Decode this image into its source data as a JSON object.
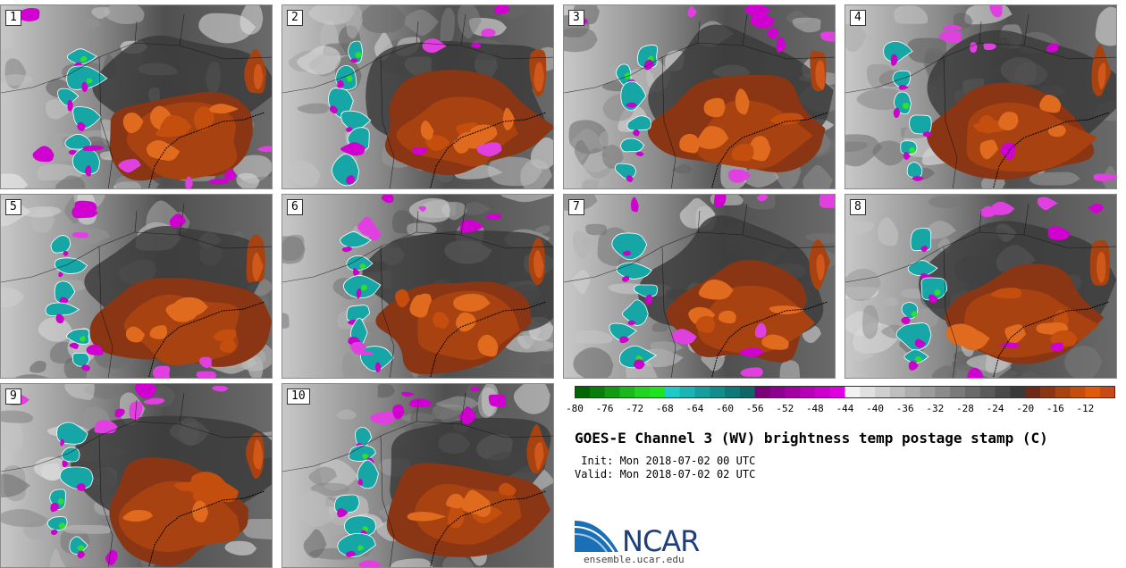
{
  "panels": [
    {
      "label": "1"
    },
    {
      "label": "2"
    },
    {
      "label": "3"
    },
    {
      "label": "4"
    },
    {
      "label": "5"
    },
    {
      "label": "6"
    },
    {
      "label": "7"
    },
    {
      "label": "8"
    },
    {
      "label": "9"
    },
    {
      "label": "10"
    }
  ],
  "colorbar": {
    "ticks": [
      "-80",
      "-76",
      "-72",
      "-68",
      "-64",
      "-60",
      "-56",
      "-52",
      "-48",
      "-44",
      "-40",
      "-36",
      "-32",
      "-28",
      "-24",
      "-20",
      "-16",
      "-12"
    ],
    "colors": [
      "#006400",
      "#0a7d0a",
      "#139a13",
      "#1ab81a",
      "#21d421",
      "#1fe31f",
      "#20c8c8",
      "#1ab4b4",
      "#169e9e",
      "#128c8c",
      "#107878",
      "#0e6666",
      "#7a007a",
      "#8e008e",
      "#a300a3",
      "#b800b8",
      "#cc00cc",
      "#e000e0",
      "#f2f2f2",
      "#e0e0e0",
      "#cfcfcf",
      "#bebebe",
      "#adadad",
      "#9c9c9c",
      "#8b8b8b",
      "#7a7a7a",
      "#6a6a6a",
      "#5a5a5a",
      "#4a4a4a",
      "#3a3a3a",
      "#6e2a18",
      "#8a3514",
      "#a84210",
      "#c44e0e",
      "#e05a0c",
      "#c84a16"
    ]
  },
  "title": "GOES-E Channel 3 (WV) brightness temp postage stamp (C)",
  "init": " Init: Mon 2018-07-02 00 UTC",
  "valid": "Valid: Mon 2018-07-02 02 UTC",
  "logo": {
    "name": "NCAR",
    "url": "ensemble.ucar.edu"
  }
}
